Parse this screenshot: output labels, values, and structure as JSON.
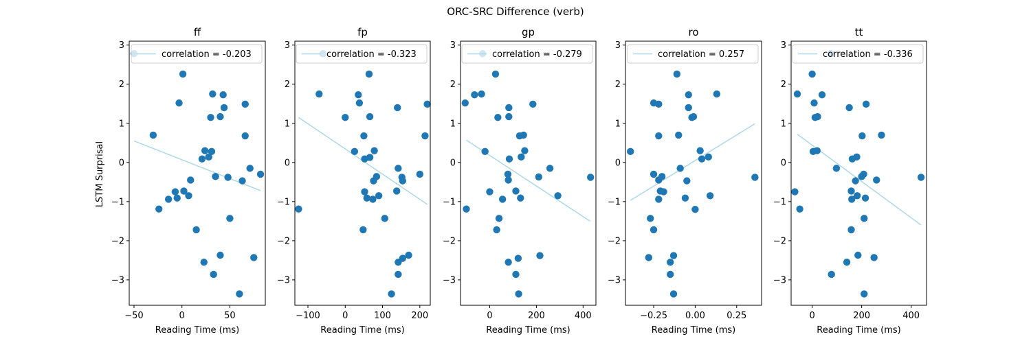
{
  "figure": {
    "suptitle": "ORC-SRC Difference (verb)",
    "ylabel": "LSTM Surprisal",
    "xlabel": "Reading Time (ms)"
  },
  "colors": {
    "points": "#1f77b4",
    "fit_line": "#add8e6",
    "axes": "#000000"
  },
  "chart_data": [
    {
      "type": "scatter",
      "title": "ff",
      "legend": "correlation = -0.203",
      "legend_loc": "upper-right",
      "xlim": [
        -55,
        87
      ],
      "ylim": [
        -3.65,
        3.1
      ],
      "xticks": [
        -50,
        0,
        50
      ],
      "yticks": [
        -3,
        -2,
        -1,
        0,
        1,
        2,
        3
      ],
      "fit": {
        "x": [
          -50,
          82
        ],
        "y": [
          0.55,
          -0.72
        ]
      },
      "points": [
        {
          "x": -50,
          "y": 2.78
        },
        {
          "x": -30,
          "y": 0.7
        },
        {
          "x": -24,
          "y": -1.19
        },
        {
          "x": -14,
          "y": -0.94
        },
        {
          "x": -7,
          "y": -0.75
        },
        {
          "x": -5,
          "y": -0.91
        },
        {
          "x": -3,
          "y": 1.52
        },
        {
          "x": 1,
          "y": 2.26
        },
        {
          "x": 2,
          "y": -0.73
        },
        {
          "x": 7,
          "y": -0.85
        },
        {
          "x": 9,
          "y": -0.45
        },
        {
          "x": 15,
          "y": -1.72
        },
        {
          "x": 21,
          "y": 0.09
        },
        {
          "x": 23,
          "y": -2.55
        },
        {
          "x": 24,
          "y": 0.3
        },
        {
          "x": 28,
          "y": 0.14
        },
        {
          "x": 30,
          "y": 1.15
        },
        {
          "x": 31,
          "y": 0.28
        },
        {
          "x": 32,
          "y": 1.75
        },
        {
          "x": 33,
          "y": -2.86
        },
        {
          "x": 35,
          "y": -0.36
        },
        {
          "x": 40,
          "y": -2.37
        },
        {
          "x": 40,
          "y": 1.17
        },
        {
          "x": 43,
          "y": 1.73
        },
        {
          "x": 44,
          "y": 1.4
        },
        {
          "x": 48,
          "y": -0.38
        },
        {
          "x": 50,
          "y": -1.43
        },
        {
          "x": 60,
          "y": -3.36
        },
        {
          "x": 63,
          "y": -0.47
        },
        {
          "x": 66,
          "y": 1.49
        },
        {
          "x": 66,
          "y": 0.68
        },
        {
          "x": 71,
          "y": -0.15
        },
        {
          "x": 75,
          "y": -2.43
        },
        {
          "x": 82,
          "y": -0.3
        }
      ]
    },
    {
      "type": "scatter",
      "title": "fp",
      "legend": "correlation = -0.323",
      "legend_loc": "upper-right",
      "xlim": [
        -135,
        228
      ],
      "ylim": [
        -3.65,
        3.1
      ],
      "xticks": [
        -100,
        0,
        100,
        200
      ],
      "yticks": [
        -3,
        -2,
        -1,
        0,
        1,
        2,
        3
      ],
      "fit": {
        "x": [
          -125,
          220
        ],
        "y": [
          1.15,
          -1.07
        ]
      },
      "points": [
        {
          "x": -125,
          "y": -1.19
        },
        {
          "x": -70,
          "y": 1.75
        },
        {
          "x": -60,
          "y": 2.78
        },
        {
          "x": 0,
          "y": 1.15
        },
        {
          "x": 25,
          "y": 0.28
        },
        {
          "x": 35,
          "y": 1.73
        },
        {
          "x": 38,
          "y": 1.52
        },
        {
          "x": 48,
          "y": -1.72
        },
        {
          "x": 50,
          "y": 0.68
        },
        {
          "x": 52,
          "y": 0.09
        },
        {
          "x": 52,
          "y": -0.75
        },
        {
          "x": 58,
          "y": -0.91
        },
        {
          "x": 64,
          "y": 2.26
        },
        {
          "x": 66,
          "y": 1.17
        },
        {
          "x": 66,
          "y": 0.13
        },
        {
          "x": 74,
          "y": -0.94
        },
        {
          "x": 76,
          "y": -0.47
        },
        {
          "x": 78,
          "y": 0.3
        },
        {
          "x": 84,
          "y": -0.36
        },
        {
          "x": 90,
          "y": -0.85
        },
        {
          "x": 106,
          "y": -1.43
        },
        {
          "x": 124,
          "y": -3.36
        },
        {
          "x": 138,
          "y": -0.73
        },
        {
          "x": 140,
          "y": 1.4
        },
        {
          "x": 142,
          "y": -2.86
        },
        {
          "x": 142,
          "y": -2.55
        },
        {
          "x": 142,
          "y": -0.15
        },
        {
          "x": 152,
          "y": -0.38
        },
        {
          "x": 154,
          "y": -0.47
        },
        {
          "x": 154,
          "y": -2.45
        },
        {
          "x": 170,
          "y": -2.37
        },
        {
          "x": 200,
          "y": -0.3
        },
        {
          "x": 214,
          "y": 0.68
        },
        {
          "x": 220,
          "y": 1.49
        }
      ]
    },
    {
      "type": "scatter",
      "title": "gp",
      "legend": "correlation = -0.279",
      "legend_loc": "upper-right",
      "xlim": [
        -125,
        455
      ],
      "ylim": [
        -3.65,
        3.1
      ],
      "xticks": [
        0,
        200,
        400
      ],
      "yticks": [
        -3,
        -2,
        -1,
        0,
        1,
        2,
        3
      ],
      "fit": {
        "x": [
          -100,
          430
        ],
        "y": [
          0.57,
          -1.5
        ]
      },
      "points": [
        {
          "x": -105,
          "y": 1.52
        },
        {
          "x": -100,
          "y": -1.19
        },
        {
          "x": -65,
          "y": 1.73
        },
        {
          "x": -35,
          "y": 1.75
        },
        {
          "x": -30,
          "y": 2.78
        },
        {
          "x": -20,
          "y": 0.28
        },
        {
          "x": 0,
          "y": -0.75
        },
        {
          "x": 25,
          "y": 2.26
        },
        {
          "x": 30,
          "y": -1.72
        },
        {
          "x": 35,
          "y": 1.15
        },
        {
          "x": 40,
          "y": -1.43
        },
        {
          "x": 55,
          "y": -0.94
        },
        {
          "x": 78,
          "y": -0.3
        },
        {
          "x": 80,
          "y": -0.45
        },
        {
          "x": 80,
          "y": -2.55
        },
        {
          "x": 82,
          "y": 1.4
        },
        {
          "x": 82,
          "y": 1.17
        },
        {
          "x": 84,
          "y": 0.09
        },
        {
          "x": 112,
          "y": -0.73
        },
        {
          "x": 112,
          "y": -2.86
        },
        {
          "x": 122,
          "y": -2.45
        },
        {
          "x": 124,
          "y": -3.36
        },
        {
          "x": 128,
          "y": 0.68
        },
        {
          "x": 132,
          "y": -0.91
        },
        {
          "x": 135,
          "y": 0.14
        },
        {
          "x": 145,
          "y": 0.7
        },
        {
          "x": 150,
          "y": 0.3
        },
        {
          "x": 185,
          "y": 1.49
        },
        {
          "x": 210,
          "y": -0.37
        },
        {
          "x": 215,
          "y": -2.38
        },
        {
          "x": 258,
          "y": -0.15
        },
        {
          "x": 292,
          "y": -0.85
        },
        {
          "x": 432,
          "y": -0.38
        }
      ]
    },
    {
      "type": "scatter",
      "title": "ro",
      "legend": "correlation = 0.257",
      "legend_loc": "upper-right",
      "xlim": [
        -0.42,
        0.4
      ],
      "ylim": [
        -3.65,
        3.1
      ],
      "xticks": [
        -0.25,
        0,
        0.25
      ],
      "xtick_labels": [
        "−0.25",
        "0.00",
        "0.25"
      ],
      "yticks": [
        -3,
        -2,
        -1,
        0,
        1,
        2,
        3
      ],
      "fit": {
        "x": [
          -0.39,
          0.36
        ],
        "y": [
          -0.97,
          0.99
        ]
      },
      "points": [
        {
          "x": -0.39,
          "y": 0.28
        },
        {
          "x": -0.28,
          "y": -2.43
        },
        {
          "x": -0.27,
          "y": -1.43
        },
        {
          "x": -0.25,
          "y": -1.72
        },
        {
          "x": -0.25,
          "y": 1.52
        },
        {
          "x": -0.25,
          "y": -0.3
        },
        {
          "x": -0.22,
          "y": 1.49
        },
        {
          "x": -0.22,
          "y": 0.68
        },
        {
          "x": -0.22,
          "y": -0.45
        },
        {
          "x": -0.22,
          "y": -0.94
        },
        {
          "x": -0.21,
          "y": -0.73
        },
        {
          "x": -0.2,
          "y": -0.36
        },
        {
          "x": -0.19,
          "y": -0.75
        },
        {
          "x": -0.15,
          "y": -2.55
        },
        {
          "x": -0.15,
          "y": -2.86
        },
        {
          "x": -0.13,
          "y": -2.38
        },
        {
          "x": -0.13,
          "y": -3.36
        },
        {
          "x": -0.11,
          "y": 2.26
        },
        {
          "x": -0.1,
          "y": 0.7
        },
        {
          "x": -0.09,
          "y": -0.15
        },
        {
          "x": -0.06,
          "y": -0.91
        },
        {
          "x": -0.05,
          "y": -0.47
        },
        {
          "x": -0.04,
          "y": 1.73
        },
        {
          "x": -0.04,
          "y": 1.4
        },
        {
          "x": -0.02,
          "y": 1.15
        },
        {
          "x": -0.01,
          "y": 1.17
        },
        {
          "x": 0.0,
          "y": -1.2
        },
        {
          "x": 0.03,
          "y": 0.3
        },
        {
          "x": 0.04,
          "y": 0.09
        },
        {
          "x": 0.08,
          "y": 0.14
        },
        {
          "x": 0.09,
          "y": -0.85
        },
        {
          "x": 0.13,
          "y": 1.75
        },
        {
          "x": 0.36,
          "y": -0.38
        }
      ]
    },
    {
      "type": "scatter",
      "title": "tt",
      "legend": "correlation = -0.336",
      "legend_loc": "upper-right",
      "xlim": [
        -85,
        462
      ],
      "ylim": [
        -3.65,
        3.1
      ],
      "xticks": [
        0,
        200,
        400
      ],
      "yticks": [
        -3,
        -2,
        -1,
        0,
        1,
        2,
        3
      ],
      "fit": {
        "x": [
          -60,
          440
        ],
        "y": [
          0.72,
          -1.6
        ]
      },
      "points": [
        {
          "x": -70,
          "y": -0.75
        },
        {
          "x": -60,
          "y": 1.75
        },
        {
          "x": -50,
          "y": -1.19
        },
        {
          "x": 0,
          "y": 2.26
        },
        {
          "x": 4,
          "y": 0.28
        },
        {
          "x": 8,
          "y": 1.52
        },
        {
          "x": 12,
          "y": 1.15
        },
        {
          "x": 20,
          "y": 0.3
        },
        {
          "x": 22,
          "y": 1.17
        },
        {
          "x": 40,
          "y": 1.73
        },
        {
          "x": 75,
          "y": 2.78
        },
        {
          "x": 78,
          "y": -2.86
        },
        {
          "x": 98,
          "y": -0.15
        },
        {
          "x": 140,
          "y": -2.55
        },
        {
          "x": 150,
          "y": 1.4
        },
        {
          "x": 158,
          "y": -1.72
        },
        {
          "x": 158,
          "y": -0.73
        },
        {
          "x": 160,
          "y": -0.94
        },
        {
          "x": 162,
          "y": 0.09
        },
        {
          "x": 175,
          "y": -0.47
        },
        {
          "x": 180,
          "y": 0.14
        },
        {
          "x": 182,
          "y": -0.85
        },
        {
          "x": 185,
          "y": -2.37
        },
        {
          "x": 200,
          "y": -0.36
        },
        {
          "x": 202,
          "y": 0.68
        },
        {
          "x": 208,
          "y": -0.3
        },
        {
          "x": 210,
          "y": -1.43
        },
        {
          "x": 210,
          "y": -3.36
        },
        {
          "x": 215,
          "y": -0.91
        },
        {
          "x": 218,
          "y": 1.49
        },
        {
          "x": 250,
          "y": -2.43
        },
        {
          "x": 260,
          "y": -0.45
        },
        {
          "x": 280,
          "y": 0.7
        },
        {
          "x": 440,
          "y": -0.38
        }
      ]
    }
  ]
}
